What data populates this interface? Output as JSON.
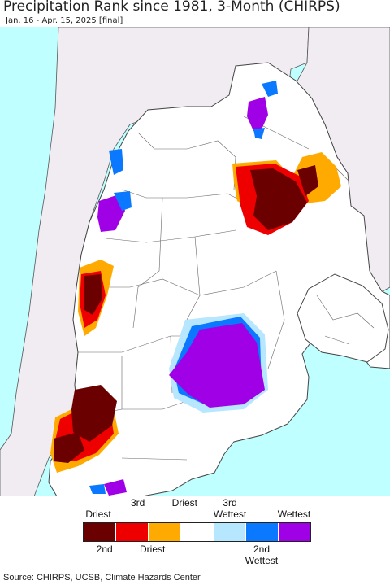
{
  "title": "Precipitation Rank since 1981, 3-Month (CHIRPS)",
  "subtitle": "Jan. 16 - Apr. 15, 2025 [final]",
  "map": {
    "ocean_color": "#bfffff",
    "outside_land_color": "#f0ecf2",
    "land_color": "#ffffff",
    "border_color": "#555555"
  },
  "legend": {
    "labels_top": [
      "Driest",
      "3rd Driest",
      "3rd Wettest",
      "Wettest"
    ],
    "labels_bottom": [
      "2nd Driest",
      "2nd Wettest"
    ],
    "swatches": [
      {
        "rank": "Driest",
        "color": "#6b0000"
      },
      {
        "rank": "2nd Driest",
        "color": "#ee0000"
      },
      {
        "rank": "3rd Driest",
        "color": "#ffaa00"
      },
      {
        "rank": "Normal",
        "color": "#ffffff"
      },
      {
        "rank": "3rd Wettest",
        "color": "#b7e6ff"
      },
      {
        "rank": "2nd Wettest",
        "color": "#0a78ff"
      },
      {
        "rank": "Wettest",
        "color": "#a000e6"
      }
    ]
  },
  "source": "Source: CHIRPS, UCSB, Climate Hazards Center"
}
